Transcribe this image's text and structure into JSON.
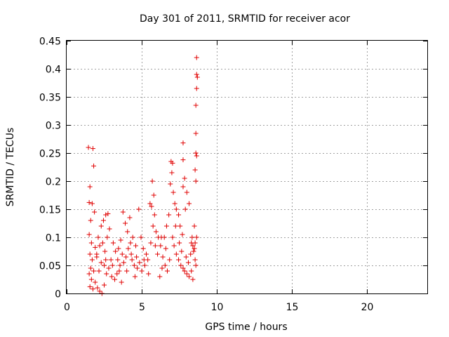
{
  "chart_data": {
    "type": "scatter",
    "title": "Day 301 of 2011, SRMTID for receiver acor",
    "xlabel": "GPS time / hours",
    "ylabel": "SRMTID / TECUs",
    "xlim": [
      0,
      24
    ],
    "ylim": [
      0,
      0.45
    ],
    "x_ticks": [
      "0",
      "5",
      "10",
      "15",
      "20"
    ],
    "y_ticks": [
      "0",
      "0.05",
      "0.1",
      "0.15",
      "0.2",
      "0.25",
      "0.3",
      "0.35",
      "0.4",
      "0.45"
    ],
    "grid": true,
    "marker": "+",
    "color": "#e00000",
    "series": [
      {
        "points": [
          [
            1.45,
            0.26
          ],
          [
            1.75,
            0.258
          ],
          [
            1.8,
            0.227
          ],
          [
            1.55,
            0.19
          ],
          [
            1.7,
            0.16
          ],
          [
            1.5,
            0.162
          ],
          [
            1.6,
            0.13
          ],
          [
            1.85,
            0.145
          ],
          [
            1.5,
            0.105
          ],
          [
            1.65,
            0.09
          ],
          [
            1.9,
            0.082
          ],
          [
            1.55,
            0.07
          ],
          [
            1.7,
            0.06
          ],
          [
            2.0,
            0.065
          ],
          [
            1.6,
            0.045
          ],
          [
            1.8,
            0.04
          ],
          [
            1.5,
            0.035
          ],
          [
            1.65,
            0.025
          ],
          [
            1.9,
            0.02
          ],
          [
            1.55,
            0.012
          ],
          [
            1.75,
            0.008
          ],
          [
            2.05,
            0.01
          ],
          [
            2.2,
            0.004
          ],
          [
            2.35,
            0.0
          ],
          [
            2.5,
            0.015
          ],
          [
            2.1,
            0.1
          ],
          [
            2.3,
            0.12
          ],
          [
            2.45,
            0.13
          ],
          [
            2.6,
            0.14
          ],
          [
            2.75,
            0.142
          ],
          [
            2.2,
            0.085
          ],
          [
            2.4,
            0.09
          ],
          [
            2.55,
            0.075
          ],
          [
            2.7,
            0.1
          ],
          [
            2.85,
            0.115
          ],
          [
            2.3,
            0.055
          ],
          [
            2.5,
            0.05
          ],
          [
            2.65,
            0.035
          ],
          [
            2.8,
            0.045
          ],
          [
            2.95,
            0.06
          ],
          [
            3.1,
            0.09
          ],
          [
            3.25,
            0.075
          ],
          [
            3.4,
            0.06
          ],
          [
            3.55,
            0.05
          ],
          [
            3.7,
            0.07
          ],
          [
            3.0,
            0.03
          ],
          [
            3.2,
            0.025
          ],
          [
            3.35,
            0.035
          ],
          [
            3.5,
            0.04
          ],
          [
            3.65,
            0.02
          ],
          [
            3.8,
            0.055
          ],
          [
            3.95,
            0.065
          ],
          [
            4.1,
            0.08
          ],
          [
            4.25,
            0.09
          ],
          [
            4.4,
            0.1
          ],
          [
            3.75,
            0.145
          ],
          [
            3.9,
            0.125
          ],
          [
            4.05,
            0.11
          ],
          [
            4.2,
            0.135
          ],
          [
            4.35,
            0.06
          ],
          [
            4.5,
            0.05
          ],
          [
            4.65,
            0.065
          ],
          [
            4.8,
            0.15
          ],
          [
            4.95,
            0.1
          ],
          [
            5.1,
            0.08
          ],
          [
            4.55,
            0.03
          ],
          [
            4.7,
            0.045
          ],
          [
            4.85,
            0.055
          ],
          [
            5.0,
            0.04
          ],
          [
            5.15,
            0.06
          ],
          [
            5.3,
            0.07
          ],
          [
            5.45,
            0.035
          ],
          [
            5.6,
            0.09
          ],
          [
            5.75,
            0.12
          ],
          [
            5.85,
            0.14
          ],
          [
            5.55,
            0.16
          ],
          [
            5.7,
            0.2
          ],
          [
            5.8,
            0.175
          ],
          [
            5.65,
            0.155
          ],
          [
            5.95,
            0.11
          ],
          [
            6.1,
            0.1
          ],
          [
            6.25,
            0.085
          ],
          [
            6.4,
            0.065
          ],
          [
            6.55,
            0.05
          ],
          [
            6.7,
            0.04
          ],
          [
            6.2,
            0.03
          ],
          [
            6.35,
            0.045
          ],
          [
            6.5,
            0.1
          ],
          [
            6.65,
            0.12
          ],
          [
            6.8,
            0.14
          ],
          [
            6.95,
            0.235
          ],
          [
            7.05,
            0.232
          ],
          [
            7.0,
            0.215
          ],
          [
            6.9,
            0.195
          ],
          [
            7.1,
            0.18
          ],
          [
            7.2,
            0.16
          ],
          [
            7.3,
            0.15
          ],
          [
            7.45,
            0.14
          ],
          [
            7.55,
            0.12
          ],
          [
            7.7,
            0.105
          ],
          [
            7.15,
            0.085
          ],
          [
            7.3,
            0.07
          ],
          [
            7.45,
            0.06
          ],
          [
            7.6,
            0.05
          ],
          [
            7.75,
            0.045
          ],
          [
            7.85,
            0.04
          ],
          [
            8.0,
            0.035
          ],
          [
            8.15,
            0.03
          ],
          [
            7.9,
            0.15
          ],
          [
            7.75,
            0.19
          ],
          [
            7.85,
            0.205
          ],
          [
            7.75,
            0.238
          ],
          [
            7.75,
            0.268
          ],
          [
            8.0,
            0.18
          ],
          [
            8.15,
            0.16
          ],
          [
            8.3,
            0.09
          ],
          [
            8.45,
            0.075
          ],
          [
            8.55,
            0.06
          ],
          [
            8.35,
            0.1
          ],
          [
            8.5,
            0.12
          ],
          [
            8.4,
            0.025
          ],
          [
            8.6,
            0.05
          ],
          [
            8.3,
            0.04
          ],
          [
            8.5,
            0.08
          ],
          [
            8.65,
            0.1
          ],
          [
            8.6,
            0.25
          ],
          [
            8.65,
            0.245
          ],
          [
            8.55,
            0.22
          ],
          [
            8.6,
            0.2
          ],
          [
            8.6,
            0.285
          ],
          [
            8.6,
            0.335
          ],
          [
            8.65,
            0.365
          ],
          [
            8.7,
            0.385
          ],
          [
            8.65,
            0.39
          ],
          [
            8.65,
            0.42
          ],
          [
            2.0,
            0.07
          ],
          [
            2.15,
            0.04
          ],
          [
            2.6,
            0.06
          ],
          [
            3.05,
            0.05
          ],
          [
            3.45,
            0.08
          ],
          [
            3.6,
            0.095
          ],
          [
            4.0,
            0.04
          ],
          [
            4.3,
            0.07
          ],
          [
            4.6,
            0.085
          ],
          [
            5.2,
            0.05
          ],
          [
            5.4,
            0.06
          ],
          [
            5.9,
            0.085
          ],
          [
            6.05,
            0.07
          ],
          [
            6.3,
            0.1
          ],
          [
            6.6,
            0.08
          ],
          [
            6.85,
            0.06
          ],
          [
            7.05,
            0.1
          ],
          [
            7.25,
            0.12
          ],
          [
            7.5,
            0.09
          ],
          [
            7.65,
            0.075
          ],
          [
            7.95,
            0.065
          ],
          [
            8.1,
            0.055
          ],
          [
            8.25,
            0.07
          ],
          [
            8.4,
            0.085
          ],
          [
            8.55,
            0.09
          ]
        ]
      }
    ]
  }
}
